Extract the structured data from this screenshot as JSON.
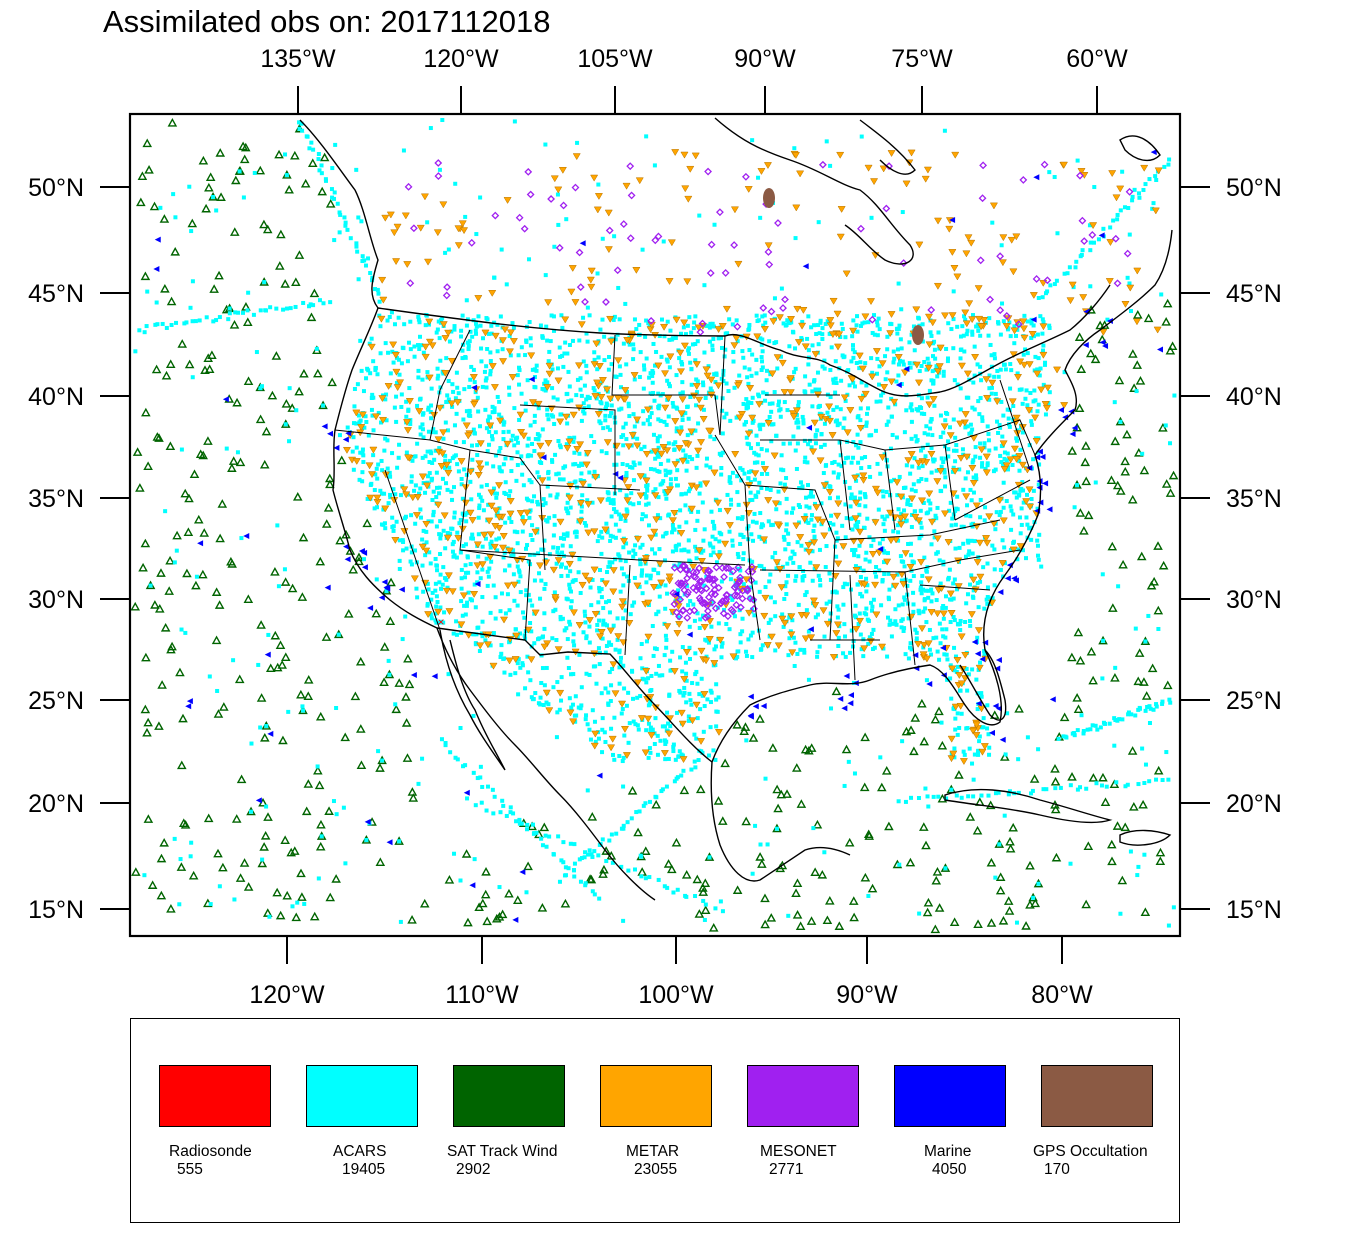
{
  "title": "Assimilated obs on: 2017112018",
  "top_lon_labels": [
    "135°W",
    "120°W",
    "105°W",
    "90°W",
    "75°W",
    "60°W"
  ],
  "bottom_lon_labels": [
    "120°W",
    "110°W",
    "100°W",
    "90°W",
    "80°W"
  ],
  "lat_labels": [
    "50°N",
    "45°N",
    "40°N",
    "35°N",
    "30°N",
    "25°N",
    "20°N",
    "15°N"
  ],
  "colors": {
    "radiosonde": "#ff0000",
    "acars": "#00ffff",
    "sat_track_wind": "#006400",
    "metar": "#ffa500",
    "mesonet": "#a020f0",
    "marine": "#0000ff",
    "gps_occultation": "#8b5a44"
  },
  "legend": [
    {
      "label": "Radiosonde",
      "count": "555",
      "color": "#ff0000"
    },
    {
      "label": "ACARS",
      "count": "19405",
      "color": "#00ffff"
    },
    {
      "label": "SAT Track Wind",
      "count": "2902",
      "color": "#006400"
    },
    {
      "label": "METAR",
      "count": "23055",
      "color": "#ffa500"
    },
    {
      "label": "MESONET",
      "count": "2771",
      "color": "#a020f0"
    },
    {
      "label": "Marine",
      "count": "4050",
      "color": "#0000ff"
    },
    {
      "label": "GPS Occultation",
      "count": "170",
      "color": "#8b5a44"
    }
  ]
}
